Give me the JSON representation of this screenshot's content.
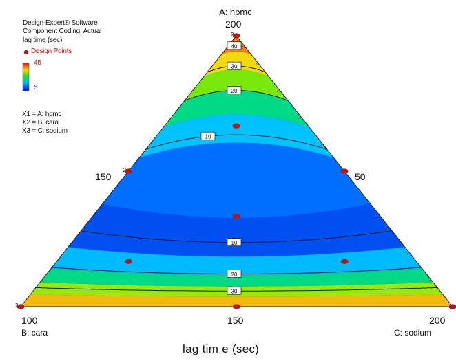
{
  "info": {
    "line1": "Design-Expert® Software",
    "line2": "Component Coding: Actual",
    "line3": "lag time (sec)",
    "design_points_label": "Design Points",
    "scale_max": "45",
    "scale_min": "5",
    "x1": "X1 = A: hpmc",
    "x2": "X2 = B: cara",
    "x3": "X3 = C: sodium"
  },
  "axes": {
    "top_name": "A: hpmc",
    "top_value": "200",
    "left_mid": "150",
    "right_mid": "50",
    "bottom_left_value": "100",
    "bottom_left_name": "B: cara",
    "bottom_mid": "150",
    "bottom_right_value": "200",
    "bottom_right_name": "C: sodium",
    "chart_title": "lag tim e (sec)"
  },
  "colors": {
    "low": "#0000ff",
    "high": "#ff2000",
    "design_point": "#b21a1a"
  },
  "chart_data": {
    "type": "ternary-contour",
    "title": "lag tim e (sec)",
    "components": [
      "A: hpmc",
      "B: cara",
      "C: sodium"
    ],
    "response": "lag time (sec)",
    "color_range": [
      5,
      45
    ],
    "contour_levels": [
      {
        "label": "40",
        "value": 40
      },
      {
        "label": "30",
        "value": 30
      },
      {
        "label": "20",
        "value": 20
      },
      {
        "label": "10",
        "value": 10
      },
      {
        "label": "10",
        "value": 10
      },
      {
        "label": "20",
        "value": 20
      },
      {
        "label": "30",
        "value": 30
      }
    ],
    "design_points": [
      {
        "A": 200,
        "B": 0,
        "C": 0,
        "replicates": 2
      },
      {
        "A": 100,
        "B": 100,
        "C": 0,
        "replicates": 2
      },
      {
        "A": 100,
        "B": 0,
        "C": 100,
        "replicates": 1
      },
      {
        "A": 0,
        "B": 200,
        "C": 0,
        "replicates": 2
      },
      {
        "A": 0,
        "B": 100,
        "C": 100,
        "replicates": 1
      },
      {
        "A": 0,
        "B": 0,
        "C": 200,
        "replicates": 1
      },
      {
        "A": 133.3,
        "B": 33.3,
        "C": 33.3,
        "replicates": 1
      },
      {
        "A": 66.7,
        "B": 66.7,
        "C": 66.7,
        "replicates": 1
      },
      {
        "A": 33.3,
        "B": 133.3,
        "C": 33.3,
        "replicates": 1
      },
      {
        "A": 33.3,
        "B": 33.3,
        "C": 133.3,
        "replicates": 1
      }
    ],
    "replicate_marker": "2"
  }
}
